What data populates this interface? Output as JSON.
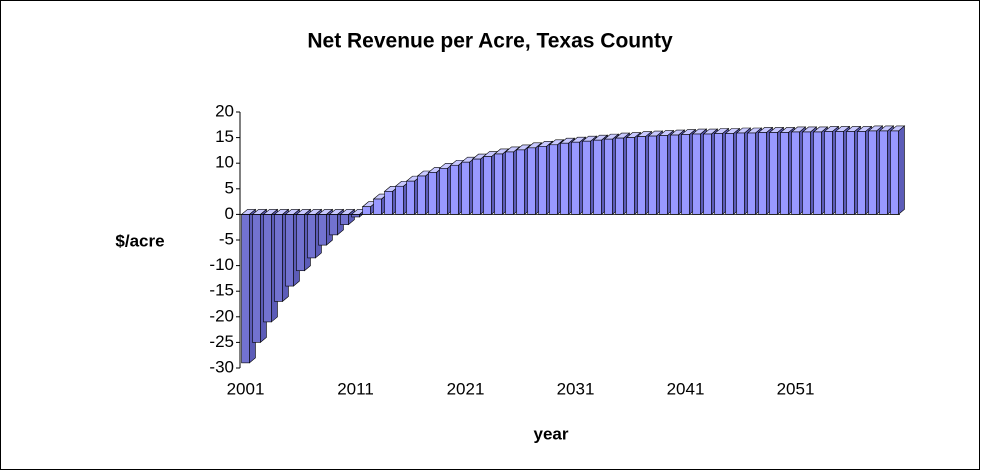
{
  "chart_data": {
    "type": "bar3d",
    "title": "Net Revenue per Acre, Texas County",
    "xlabel": "year",
    "ylabel": "$/acre",
    "categories": [
      "2001",
      null,
      null,
      null,
      null,
      null,
      null,
      null,
      null,
      null,
      "2011",
      null,
      null,
      null,
      null,
      null,
      null,
      null,
      null,
      null,
      "2021",
      null,
      null,
      null,
      null,
      null,
      null,
      null,
      null,
      null,
      "2031",
      null,
      null,
      null,
      null,
      null,
      null,
      null,
      null,
      null,
      "2041",
      null,
      null,
      null,
      null,
      null,
      null,
      null,
      null,
      null,
      "2051",
      null,
      null,
      null,
      null,
      null,
      null,
      null,
      null,
      null
    ],
    "values": [
      -29,
      -25,
      -21,
      -17,
      -14,
      -11,
      -8.5,
      -6,
      -4,
      -2,
      -0.5,
      1.5,
      3,
      4.5,
      5.5,
      6.5,
      7.5,
      8.2,
      9,
      9.6,
      10.2,
      10.8,
      11.3,
      11.8,
      12.2,
      12.6,
      13,
      13.3,
      13.6,
      13.9,
      14.1,
      14.3,
      14.5,
      14.7,
      14.9,
      15,
      15.2,
      15.3,
      15.4,
      15.5,
      15.6,
      15.7,
      15.7,
      15.8,
      15.8,
      15.9,
      15.9,
      16,
      16,
      16,
      16.1,
      16.1,
      16.1,
      16.2,
      16.2,
      16.2,
      16.2,
      16.3,
      16.3,
      16.3
    ],
    "color": "#9999ff",
    "ylim": [
      -30,
      20
    ],
    "yticks": [
      -30,
      -25,
      -20,
      -15,
      -10,
      -5,
      0,
      5,
      10,
      15,
      20
    ]
  }
}
